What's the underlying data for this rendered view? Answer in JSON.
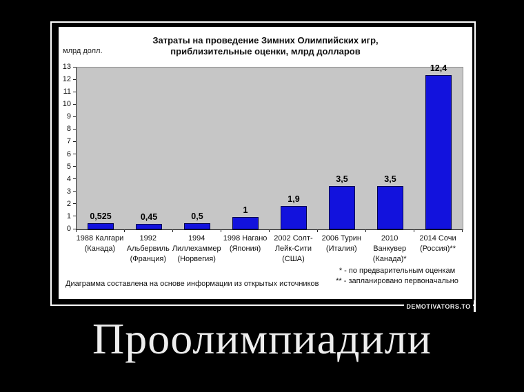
{
  "page": {
    "background": "#000000"
  },
  "caption": {
    "text": "Проолимпиадили"
  },
  "watermark": {
    "label": "DEMOTIVATORS.TO"
  },
  "chart": {
    "title_line1": "Затраты на проведение Зимних Олимпийских игр,",
    "title_line2": "приблизительные оценки, млрд долларов",
    "y_axis_unit": "млрд долл.",
    "source_note": "Диаграмма составлена на основе информации из открытых источников",
    "footnotes": [
      "* - по предварительным оценкам",
      "** - запланировано первоначально"
    ]
  },
  "chart_data": {
    "type": "bar",
    "title": "Затраты на проведение Зимних Олимпийских игр, приблизительные оценки, млрд долларов",
    "xlabel": "",
    "ylabel": "млрд долл.",
    "ylim": [
      0,
      13
    ],
    "y_ticks": [
      0,
      1,
      2,
      3,
      4,
      5,
      6,
      7,
      8,
      9,
      10,
      11,
      12,
      13
    ],
    "grid": false,
    "legend": false,
    "plot_bg_color": "#c6c6c6",
    "bar_color": "#1212dd",
    "bar_border_color": "#00004d",
    "categories": [
      [
        "1988 Калгари",
        "(Канада)"
      ],
      [
        "1992",
        "Альбервиль",
        "(Франция)"
      ],
      [
        "1994",
        "Лиллехаммер",
        "(Норвегия)"
      ],
      [
        "1998 Нагано",
        "(Япония)"
      ],
      [
        "2002 Солт-",
        "Лейк-Сити",
        "(США)"
      ],
      [
        "2006 Турин",
        "(Италия)"
      ],
      [
        "2010",
        "Ванкувер",
        "(Канада)*"
      ],
      [
        "2014 Сочи",
        "(Россия)**"
      ]
    ],
    "values": [
      0.525,
      0.45,
      0.5,
      1,
      1.9,
      3.5,
      3.5,
      12.4
    ],
    "value_labels": [
      "0,525",
      "0,45",
      "0,5",
      "1",
      "1,9",
      "3,5",
      "3,5",
      "12,4"
    ]
  }
}
